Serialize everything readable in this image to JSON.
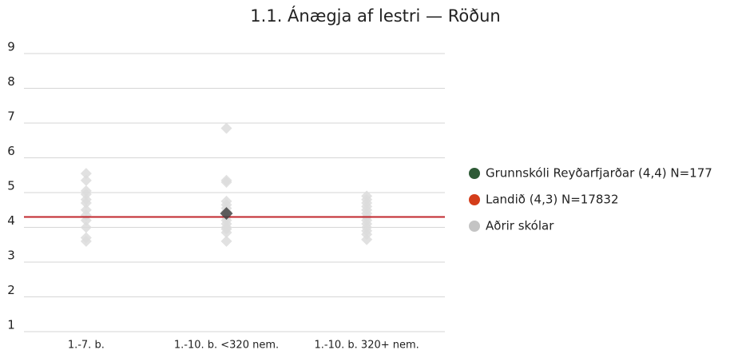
{
  "chart_data": {
    "type": "strip",
    "title": "1.1. Ánægja af lestri — Röðun",
    "categories": [
      "1.-7. b.",
      "1.-10. b. <320 nem.",
      "1.-10. b. 320+ nem."
    ],
    "ylim": [
      1,
      9
    ],
    "yticks": [
      1,
      2,
      3,
      4,
      5,
      6,
      7,
      8,
      9
    ],
    "grid": true,
    "legend": "right",
    "series": [
      {
        "name": "Grunnskóli Reyðarfjarðar (4,4) N=177",
        "color": "#2e5a36",
        "mark_color": "#444444",
        "values": [
          null,
          4.4,
          null
        ]
      },
      {
        "name": "Landið (4,3) N=17832",
        "color": "#d43d1a",
        "line_color": "#c1272d",
        "value": 4.3
      },
      {
        "name": "Aðrir skólar",
        "color": "#c4c4c4",
        "mark_color": "#dcdcdc",
        "values": [
          [
            5.55,
            5.35,
            5.05,
            4.95,
            4.8,
            4.7,
            4.5,
            4.35,
            4.2,
            4.0,
            3.7,
            3.6
          ],
          [
            6.85,
            5.35,
            5.3,
            4.75,
            4.65,
            4.55,
            4.45,
            4.3,
            4.2,
            4.1,
            4.0,
            3.95,
            3.85,
            3.6
          ],
          [
            4.9,
            4.8,
            4.7,
            4.6,
            4.5,
            4.4,
            4.3,
            4.2,
            4.1,
            4.0,
            3.9,
            3.8,
            3.65
          ]
        ]
      }
    ]
  }
}
